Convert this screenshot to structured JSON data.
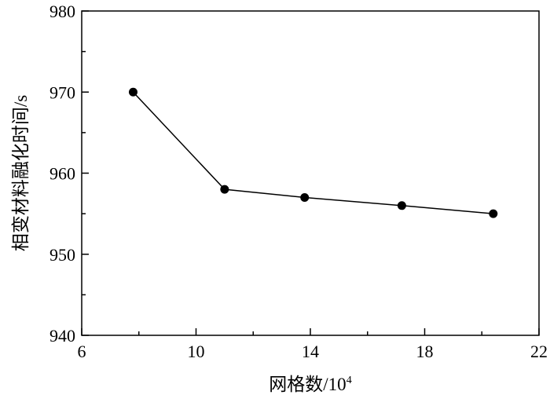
{
  "chart_data": {
    "type": "line",
    "title": "",
    "xlabel": "网格数/10",
    "xlabel_superscript": "4",
    "ylabel": "相变材料融化时间/s",
    "xlim": [
      6,
      22
    ],
    "ylim": [
      940,
      980
    ],
    "x_ticks": [
      6,
      10,
      14,
      18,
      22
    ],
    "y_ticks": [
      940,
      950,
      960,
      970,
      980
    ],
    "x_minor_step": 2,
    "y_minor_step": 5,
    "grid": false,
    "legend": "none",
    "series": [
      {
        "x": [
          7.8,
          11.0,
          13.8,
          17.2,
          20.4
        ],
        "y": [
          970,
          958,
          957,
          956,
          955
        ],
        "color": "#000000",
        "marker": "circle"
      }
    ]
  }
}
